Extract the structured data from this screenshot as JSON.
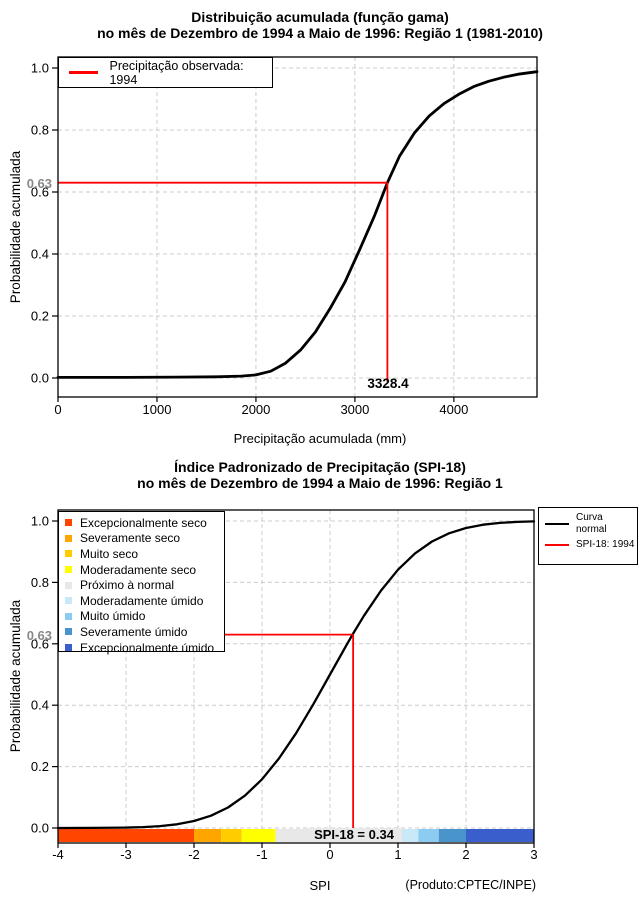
{
  "chart_data": [
    {
      "type": "line",
      "title": "Distribuição acumulada (função gama)",
      "subtitle": "no mês de Dezembro de 1994 a Maio de 1996: Região 1 (1981-2010)",
      "xlabel": "Precipitação acumulada (mm)",
      "ylabel": "Probabilidade acumulada",
      "xlim": [
        0,
        4840
      ],
      "ylim": [
        0,
        1
      ],
      "grid": true,
      "xticks": {
        "values": [
          0,
          1000,
          2000,
          3000,
          4000
        ],
        "labels": [
          "0",
          "1000",
          "2000",
          "3000",
          "4000"
        ]
      },
      "yticks": {
        "values": [
          0,
          0.2,
          0.4,
          0.6,
          0.8,
          1
        ],
        "labels": [
          "0.0",
          "0.2",
          "0.4",
          "0.6",
          "0.8",
          "1.0"
        ]
      },
      "legend": {
        "position": "top-left",
        "items": [
          {
            "label": "Precipitação observada: 1994",
            "color": "#FF0000"
          }
        ]
      },
      "marker": {
        "x": 3328.4,
        "y": 0.63,
        "x_label": "3328.4",
        "y_label": "0.63",
        "color": "#FF0000"
      },
      "series": [
        {
          "name": "Distribuição acumulada (função gama)",
          "color": "#000000",
          "points": [
            [
              0,
              0.002
            ],
            [
              600,
              0.002
            ],
            [
              1200,
              0.003
            ],
            [
              1600,
              0.004
            ],
            [
              1850,
              0.006
            ],
            [
              2000,
              0.01
            ],
            [
              2150,
              0.022
            ],
            [
              2300,
              0.048
            ],
            [
              2450,
              0.09
            ],
            [
              2600,
              0.148
            ],
            [
              2750,
              0.225
            ],
            [
              2900,
              0.31
            ],
            [
              3050,
              0.415
            ],
            [
              3200,
              0.525
            ],
            [
              3328.4,
              0.63
            ],
            [
              3450,
              0.715
            ],
            [
              3600,
              0.79
            ],
            [
              3750,
              0.845
            ],
            [
              3900,
              0.885
            ],
            [
              4050,
              0.915
            ],
            [
              4200,
              0.94
            ],
            [
              4350,
              0.957
            ],
            [
              4500,
              0.97
            ],
            [
              4650,
              0.98
            ],
            [
              4840,
              0.988
            ]
          ]
        }
      ]
    },
    {
      "type": "line",
      "title": "Índice Padronizado de Precipitação (SPI-18)",
      "subtitle": "no mês de Dezembro de 1994 a Maio de 1996: Região 1",
      "xlabel": "SPI",
      "ylabel": "Probabilidade acumulada",
      "xlim": [
        -4,
        3
      ],
      "ylim": [
        0,
        1
      ],
      "grid": true,
      "xticks": {
        "values": [
          -4,
          -3,
          -2,
          -1,
          0,
          1,
          2,
          3
        ],
        "labels": [
          "-4",
          "-3",
          "-2",
          "-1",
          "0",
          "1",
          "2",
          "3"
        ]
      },
      "yticks": {
        "values": [
          0,
          0.2,
          0.4,
          0.6,
          0.8,
          1
        ],
        "labels": [
          "0.0",
          "0.2",
          "0.4",
          "0.6",
          "0.8",
          "1.0"
        ]
      },
      "categories": [
        {
          "label": "Excepcionalmente seco",
          "color": "#FF4500",
          "range": [
            -4,
            -2
          ]
        },
        {
          "label": "Severamente seco",
          "color": "#FFA500",
          "range": [
            -2,
            -1.6
          ]
        },
        {
          "label": "Muito seco",
          "color": "#FFCC00",
          "range": [
            -1.6,
            -1.3
          ]
        },
        {
          "label": "Moderadamente seco",
          "color": "#FFFF00",
          "range": [
            -1.3,
            -0.8
          ]
        },
        {
          "label": "Próximo à normal",
          "color": "#E8E8E8",
          "range": [
            -0.8,
            0.8
          ]
        },
        {
          "label": "Moderadamente úmido",
          "color": "#C9E8F8",
          "range": [
            0.8,
            1.3
          ]
        },
        {
          "label": "Muito úmido",
          "color": "#8CCCF0",
          "range": [
            1.3,
            1.6
          ]
        },
        {
          "label": "Severamente úmido",
          "color": "#4A94CC",
          "range": [
            1.6,
            2
          ]
        },
        {
          "label": "Excepcionalmente úmido",
          "color": "#3A5FCD",
          "range": [
            2,
            3
          ]
        }
      ],
      "legend_lines": {
        "position": "top-right",
        "items": [
          {
            "label": "Curva normal",
            "color": "#000000"
          },
          {
            "label": "SPI-18: 1994",
            "color": "#FF0000"
          }
        ]
      },
      "marker": {
        "x": 0.34,
        "y": 0.63,
        "label": "SPI-18 = 0.34",
        "y_label": "0.63",
        "color": "#FF0000"
      },
      "series": [
        {
          "name": "Curva normal",
          "color": "#000000",
          "points": [
            [
              -4,
              0.0001
            ],
            [
              -3.5,
              0.0002
            ],
            [
              -3,
              0.0013
            ],
            [
              -2.75,
              0.003
            ],
            [
              -2.5,
              0.0062
            ],
            [
              -2.25,
              0.0122
            ],
            [
              -2,
              0.0228
            ],
            [
              -1.75,
              0.0401
            ],
            [
              -1.5,
              0.0668
            ],
            [
              -1.25,
              0.1056
            ],
            [
              -1,
              0.1587
            ],
            [
              -0.75,
              0.2266
            ],
            [
              -0.5,
              0.3085
            ],
            [
              -0.25,
              0.4013
            ],
            [
              0,
              0.5
            ],
            [
              0.25,
              0.5987
            ],
            [
              0.34,
              0.6331
            ],
            [
              0.5,
              0.6915
            ],
            [
              0.75,
              0.7734
            ],
            [
              1,
              0.8413
            ],
            [
              1.25,
              0.8944
            ],
            [
              1.5,
              0.9332
            ],
            [
              1.75,
              0.9599
            ],
            [
              2,
              0.9772
            ],
            [
              2.25,
              0.9878
            ],
            [
              2.5,
              0.9938
            ],
            [
              2.75,
              0.997
            ],
            [
              3,
              0.9987
            ]
          ]
        }
      ],
      "footnote": "(Produto:CPTEC/INPE)"
    }
  ]
}
